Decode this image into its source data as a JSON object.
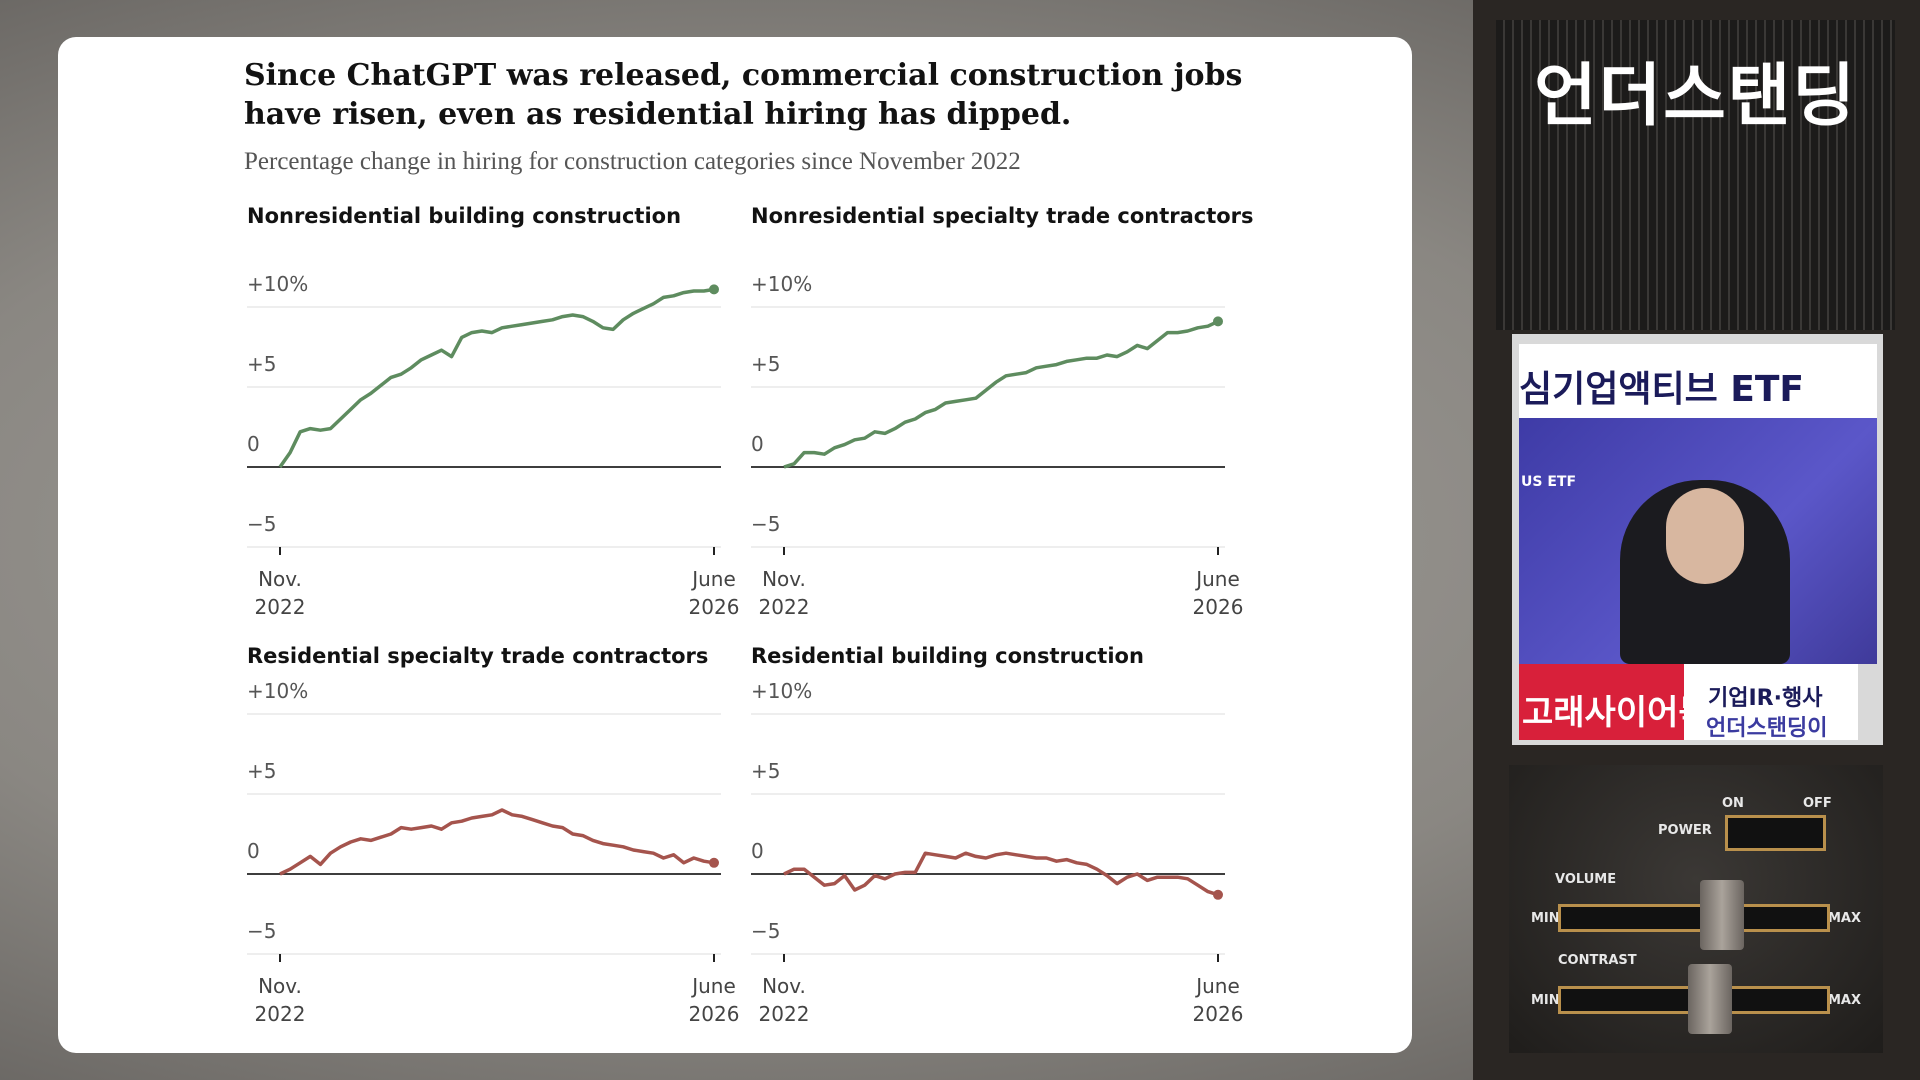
{
  "figure": {
    "title": "Since ChatGPT was released, commercial construction jobs have risen, even as residential hiring has dipped.",
    "subtitle": "Percentage change in hiring for construction categories since November 2022"
  },
  "chart_data": [
    {
      "type": "line",
      "title": "Nonresidential building construction",
      "color": "#5e8c5f",
      "categories": [
        "Nov.\n2022",
        null,
        null,
        null,
        null,
        null,
        null,
        null,
        null,
        null,
        null,
        null,
        null,
        null,
        null,
        null,
        null,
        null,
        null,
        null,
        null,
        null,
        null,
        null,
        null,
        null,
        null,
        null,
        null,
        null,
        null,
        null,
        null,
        null,
        null,
        null,
        null,
        null,
        null,
        null,
        null,
        null,
        null,
        "June\n2026"
      ],
      "values": [
        0,
        0.9,
        2.2,
        2.4,
        2.3,
        2.4,
        3.0,
        3.6,
        4.2,
        4.6,
        5.1,
        5.6,
        5.8,
        6.2,
        6.7,
        7.0,
        7.3,
        6.9,
        8.1,
        8.4,
        8.5,
        8.4,
        8.7,
        8.8,
        8.9,
        9.0,
        9.1,
        9.2,
        9.4,
        9.5,
        9.4,
        9.1,
        8.7,
        8.6,
        9.2,
        9.6,
        9.9,
        10.2,
        10.6,
        10.7,
        10.9,
        11.0,
        11.0,
        11.1
      ],
      "ylim": [
        -5,
        11.5
      ],
      "yticks": [
        {
          "value": -5,
          "label": "−5"
        },
        0,
        {
          "value": 5,
          "label": "+5"
        },
        {
          "value": 10,
          "label": "+10%"
        }
      ],
      "grid": true
    },
    {
      "type": "line",
      "title": "Nonresidential specialty trade contractors",
      "color": "#5e8c5f",
      "categories": [
        "Nov.\n2022",
        null,
        null,
        null,
        null,
        null,
        null,
        null,
        null,
        null,
        null,
        null,
        null,
        null,
        null,
        null,
        null,
        null,
        null,
        null,
        null,
        null,
        null,
        null,
        null,
        null,
        null,
        null,
        null,
        null,
        null,
        null,
        null,
        null,
        null,
        null,
        null,
        null,
        null,
        null,
        null,
        null,
        null,
        "June\n2026"
      ],
      "values": [
        0,
        0.2,
        0.9,
        0.9,
        0.8,
        1.2,
        1.4,
        1.7,
        1.8,
        2.2,
        2.1,
        2.4,
        2.8,
        3.0,
        3.4,
        3.6,
        4.0,
        4.1,
        4.2,
        4.3,
        4.8,
        5.3,
        5.7,
        5.8,
        5.9,
        6.2,
        6.3,
        6.4,
        6.6,
        6.7,
        6.8,
        6.8,
        7.0,
        6.9,
        7.2,
        7.6,
        7.4,
        7.9,
        8.4,
        8.4,
        8.5,
        8.7,
        8.8,
        9.1
      ],
      "ylim": [
        -5,
        11.5
      ],
      "yticks": [
        {
          "value": -5,
          "label": "−5"
        },
        0,
        {
          "value": 5,
          "label": "+5"
        },
        {
          "value": 10,
          "label": "+10%"
        }
      ],
      "grid": true
    },
    {
      "type": "line",
      "title": "Residential specialty trade contractors",
      "color": "#a5544d",
      "categories": [
        "Nov.\n2022",
        null,
        null,
        null,
        null,
        null,
        null,
        null,
        null,
        null,
        null,
        null,
        null,
        null,
        null,
        null,
        null,
        null,
        null,
        null,
        null,
        null,
        null,
        null,
        null,
        null,
        null,
        null,
        null,
        null,
        null,
        null,
        null,
        null,
        null,
        null,
        null,
        null,
        null,
        null,
        null,
        null,
        null,
        "June\n2026"
      ],
      "values": [
        0,
        0.3,
        0.7,
        1.1,
        0.6,
        1.3,
        1.7,
        2.0,
        2.2,
        2.1,
        2.3,
        2.5,
        2.9,
        2.8,
        2.9,
        3.0,
        2.8,
        3.2,
        3.3,
        3.5,
        3.6,
        3.7,
        4.0,
        3.7,
        3.6,
        3.4,
        3.2,
        3.0,
        2.9,
        2.5,
        2.4,
        2.1,
        1.9,
        1.8,
        1.7,
        1.5,
        1.4,
        1.3,
        1.0,
        1.2,
        0.7,
        1.0,
        0.8,
        0.7
      ],
      "ylim": [
        -5,
        11.5
      ],
      "yticks": [
        {
          "value": -5,
          "label": "−5"
        },
        0,
        {
          "value": 5,
          "label": "+5"
        },
        {
          "value": 10,
          "label": "+10%"
        }
      ],
      "grid": true
    },
    {
      "type": "line",
      "title": "Residential building construction",
      "color": "#a5544d",
      "categories": [
        "Nov.\n2022",
        null,
        null,
        null,
        null,
        null,
        null,
        null,
        null,
        null,
        null,
        null,
        null,
        null,
        null,
        null,
        null,
        null,
        null,
        null,
        null,
        null,
        null,
        null,
        null,
        null,
        null,
        null,
        null,
        null,
        null,
        null,
        null,
        null,
        null,
        null,
        null,
        null,
        null,
        null,
        null,
        null,
        null,
        "June\n2026"
      ],
      "values": [
        0,
        0.3,
        0.3,
        -0.2,
        -0.7,
        -0.6,
        -0.1,
        -1.0,
        -0.7,
        -0.1,
        -0.3,
        0,
        0.1,
        0.1,
        1.3,
        1.2,
        1.1,
        1.0,
        1.3,
        1.1,
        1.0,
        1.2,
        1.3,
        1.2,
        1.1,
        1.0,
        1.0,
        0.8,
        0.9,
        0.7,
        0.6,
        0.3,
        -0.1,
        -0.6,
        -0.2,
        0,
        -0.4,
        -0.2,
        -0.2,
        -0.2,
        -0.3,
        -0.7,
        -1.1,
        -1.3
      ],
      "ylim": [
        -5,
        11.5
      ],
      "yticks": [
        {
          "value": -5,
          "label": "−5"
        },
        0,
        {
          "value": 5,
          "label": "+5"
        },
        {
          "value": 10,
          "label": "+10%"
        }
      ],
      "grid": true
    }
  ],
  "overlay": {
    "channel": "언더스탠딩",
    "inset_title": "심기업액티브 ETF",
    "etf_logo": "US ETF",
    "lower_left": "고래사이어묵",
    "lower_right_top": "기업IR·행사",
    "lower_right_bottom": "언더스탠딩이"
  },
  "device": {
    "power": "POWER",
    "on": "ON",
    "off": "OFF",
    "volume": "VOLUME",
    "contrast": "CONTRAST",
    "vol_min": "MIN",
    "vol_max": "MAX",
    "con_min": "MIN",
    "con_max": "MAX"
  }
}
